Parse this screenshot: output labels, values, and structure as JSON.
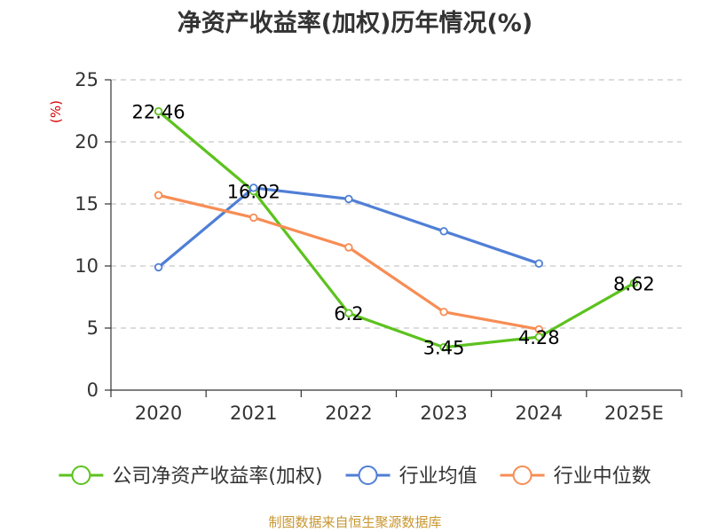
{
  "chart_data": {
    "type": "line",
    "title": "净资产收益率(加权)历年情况(%)",
    "ylabel": "(%)",
    "xlabel": "",
    "categories": [
      "2020",
      "2021",
      "2022",
      "2023",
      "2024",
      "2025E"
    ],
    "ylim": [
      0,
      25
    ],
    "yticks": [
      0,
      5,
      10,
      15,
      20,
      25
    ],
    "grid": true,
    "legend_position": "bottom",
    "series": [
      {
        "name": "公司净资产收益率(加权)",
        "color": "#5cc21e",
        "values": [
          22.46,
          16.02,
          6.2,
          3.45,
          4.28,
          8.62
        ],
        "labels": [
          "22.46",
          "16.02",
          "6.2",
          "3.45",
          "4.28",
          "8.62"
        ]
      },
      {
        "name": "行业均值",
        "color": "#4f7fd6",
        "values": [
          9.9,
          16.3,
          15.4,
          12.8,
          10.2,
          null
        ]
      },
      {
        "name": "行业中位数",
        "color": "#f78d55",
        "values": [
          15.7,
          13.9,
          11.5,
          6.3,
          4.9,
          null
        ]
      }
    ]
  },
  "source": "制图数据来自恒生聚源数据库"
}
